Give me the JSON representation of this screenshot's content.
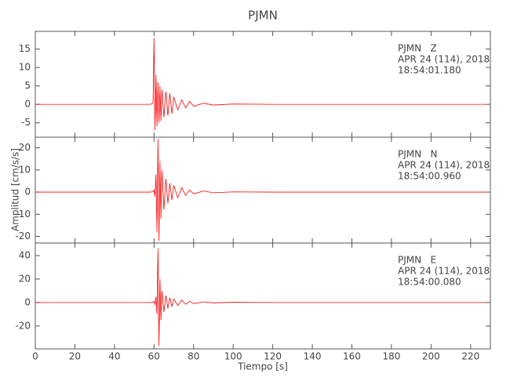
{
  "chart_data": [
    {
      "type": "line",
      "title": "PJMN",
      "annotations": [
        "PJMN   Z",
        "APR 24 (114), 2018",
        "18:54:01.180"
      ],
      "x": [
        0,
        10,
        20,
        30,
        40,
        50,
        58,
        59.5,
        60,
        60.5,
        61,
        61.5,
        62,
        62.5,
        63,
        63.5,
        64,
        65,
        66,
        67,
        68,
        69,
        70,
        72,
        74,
        76,
        78,
        80,
        85,
        90,
        100,
        120,
        140,
        160,
        180,
        200,
        220,
        228
      ],
      "series": [
        {
          "color": "#ff0000",
          "values": [
            0,
            0,
            0,
            0,
            0,
            0,
            0,
            0.3,
            18,
            -7,
            8,
            -6,
            6,
            -5,
            5,
            -4.5,
            4,
            -3.5,
            3.5,
            -3,
            3,
            -2.5,
            2,
            -1.5,
            1.2,
            -1,
            0.8,
            -0.5,
            0.3,
            -0.2,
            0.1,
            0,
            0,
            0,
            0,
            0,
            0,
            0
          ]
        }
      ],
      "xlim": [
        0,
        230
      ],
      "xticks": [
        0,
        20,
        40,
        60,
        80,
        100,
        120,
        140,
        160,
        180,
        200,
        220
      ],
      "ylim": [
        -8.9,
        19.8
      ],
      "yticks": [
        -5,
        0,
        5,
        10,
        15
      ]
    },
    {
      "type": "line",
      "ylabel": "Amplitud [cm/s/s]",
      "annotations": [
        "PJMN   N",
        "APR 24 (114), 2018",
        "18:54:00.960"
      ],
      "x": [
        0,
        10,
        20,
        30,
        40,
        50,
        58,
        59.5,
        60,
        60.5,
        61,
        61.5,
        62,
        62.5,
        63,
        63.5,
        64,
        65,
        66,
        67,
        68,
        69,
        70,
        72,
        74,
        76,
        78,
        80,
        85,
        90,
        100,
        120,
        140,
        160,
        180,
        200,
        220,
        228
      ],
      "series": [
        {
          "color": "#ff0000",
          "values": [
            0,
            0,
            0,
            0,
            0,
            0,
            0,
            0.2,
            1,
            -2,
            8,
            -18,
            24,
            -22,
            14,
            -12,
            10,
            -8,
            6,
            -5,
            4,
            -3.5,
            3,
            -2.5,
            2,
            -1.5,
            1,
            -0.8,
            0.5,
            -0.3,
            0.1,
            0,
            0,
            0,
            0,
            0,
            0,
            0
          ]
        }
      ],
      "xlim": [
        0,
        230
      ],
      "xticks": [
        0,
        20,
        40,
        60,
        80,
        100,
        120,
        140,
        160,
        180,
        200,
        220
      ],
      "ylim": [
        -23,
        24.8
      ],
      "yticks": [
        -20,
        -10,
        0,
        10,
        20
      ]
    },
    {
      "type": "line",
      "xlabel": "Tiempo [s]",
      "annotations": [
        "PJMN   E",
        "APR 24 (114), 2018",
        "18:54:00.080"
      ],
      "x": [
        0,
        10,
        20,
        30,
        40,
        50,
        58,
        59.5,
        60,
        60.5,
        61,
        61.5,
        62,
        62.5,
        63,
        63.5,
        64,
        65,
        66,
        67,
        68,
        69,
        70,
        72,
        74,
        76,
        78,
        80,
        85,
        90,
        100,
        120,
        140,
        160,
        180,
        200,
        220,
        228
      ],
      "series": [
        {
          "color": "#ff0000",
          "values": [
            0,
            0,
            0,
            0,
            0,
            0,
            0,
            0.3,
            1,
            -2,
            5,
            -10,
            46,
            -37,
            20,
            -15,
            10,
            -8,
            6,
            -5,
            4,
            -3.5,
            3,
            -2.5,
            2,
            -1.5,
            1.2,
            -1,
            0.6,
            -0.3,
            0.2,
            0,
            0,
            0,
            0,
            0,
            0,
            0
          ]
        }
      ],
      "xlim": [
        0,
        230
      ],
      "xticks": [
        0,
        20,
        40,
        60,
        80,
        100,
        120,
        140,
        160,
        180,
        200,
        220
      ],
      "ylim": [
        -39.5,
        50.7
      ],
      "yticks": [
        -20,
        0,
        20,
        40
      ]
    }
  ]
}
